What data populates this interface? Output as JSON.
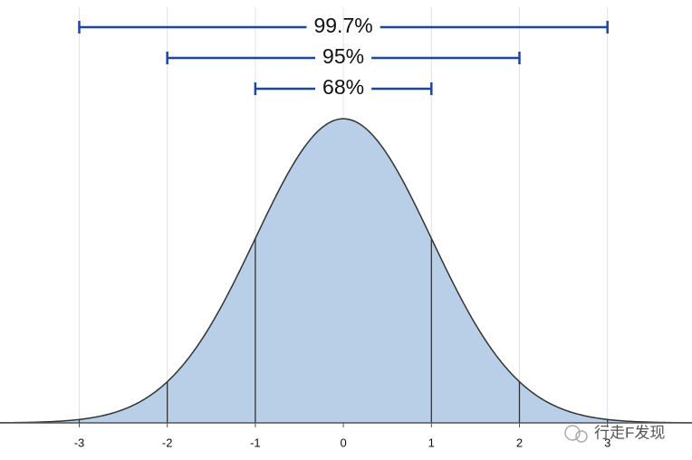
{
  "chart_data": {
    "type": "normal",
    "mean": 0,
    "sd": 1,
    "xlim": [
      -3.9,
      3.96
    ],
    "ylim": [
      0,
      0.55
    ],
    "xticks": [
      -3,
      -2,
      -1,
      0,
      1,
      2,
      3
    ],
    "grid": true,
    "fill": "#b9cfe8",
    "line_color": "#333333",
    "bracket_color": "#1f45a3",
    "intervals": [
      {
        "lo": -3,
        "hi": 3,
        "label": "99.7%"
      },
      {
        "lo": -2,
        "hi": 2,
        "label": "95%"
      },
      {
        "lo": -1,
        "hi": 1,
        "label": "68%"
      }
    ],
    "watermark": "行走F发现"
  }
}
